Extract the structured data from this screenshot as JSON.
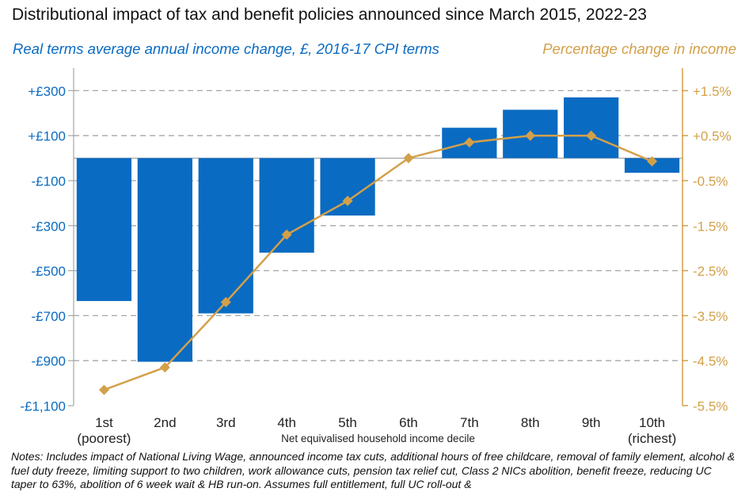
{
  "title": "Distributional impact of tax and benefit policies announced since March 2015, 2022-23",
  "subtitle_left": "Real terms average annual income change, £, 2016-17 CPI terms",
  "subtitle_right": "Percentage change in income",
  "x_axis_label": "Net equivalised household income decile",
  "notes": "Notes: Includes impact of National Living Wage, announced income tax cuts, additional hours of free childcare, removal of family element, alcohol & fuel duty freeze, limiting support to two children, work allowance cuts, pension tax relief cut, Class 2 NICs abolition, benefit freeze, reducing UC taper to 63%, abolition of 6 week wait & HB run-on. Assumes full entitlement, full UC roll-out &",
  "colors": {
    "bars": "#0a6bc2",
    "line": "#d3a04a",
    "grid": "#a6a6a6",
    "axis": "#a6a6a6"
  },
  "chart_data": {
    "type": "bar+line",
    "categories": [
      "1st",
      "2nd",
      "3rd",
      "4th",
      "5th",
      "6th",
      "7th",
      "8th",
      "9th",
      "10th"
    ],
    "category_sublabels": [
      "(poorest)",
      "",
      "",
      "",
      "",
      "",
      "",
      "",
      "",
      "(richest)"
    ],
    "series": [
      {
        "type": "bar",
        "axis": "left",
        "values": [
          -635,
          -905,
          -690,
          -420,
          -255,
          0,
          135,
          215,
          270,
          -65
        ]
      },
      {
        "type": "line",
        "axis": "right",
        "values": [
          -5.15,
          -4.65,
          -3.2,
          -1.7,
          -0.95,
          0.0,
          0.35,
          0.5,
          0.5,
          -0.07
        ]
      }
    ],
    "left_axis": {
      "ylim": [
        -1100,
        400
      ],
      "ticks": [
        300,
        100,
        -100,
        -300,
        -500,
        -700,
        -900,
        -1100
      ],
      "tick_labels": [
        "+£300",
        "+£100",
        "-£100",
        "-£300",
        "-£500",
        "-£700",
        "-£900",
        "-£1,100"
      ]
    },
    "right_axis": {
      "ylim": [
        -5.5,
        2.0
      ],
      "ticks": [
        1.5,
        0.5,
        -0.5,
        -1.5,
        -2.5,
        -3.5,
        -4.5,
        -5.5
      ],
      "tick_labels": [
        "+1.5%",
        "+0.5%",
        "-0.5%",
        "-1.5%",
        "-2.5%",
        "-3.5%",
        "-4.5%",
        "-5.5%"
      ]
    },
    "grid": true
  }
}
